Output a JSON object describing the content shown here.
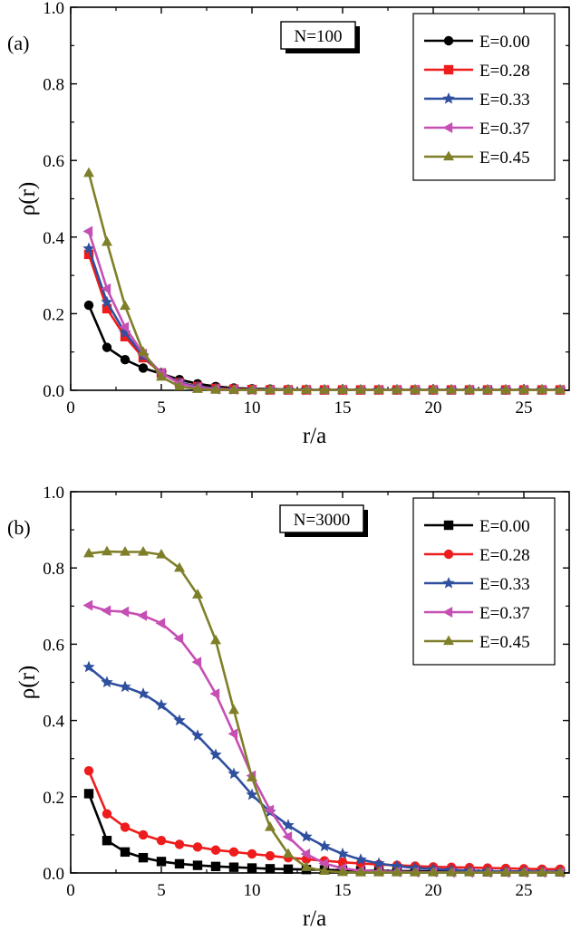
{
  "chart_data": [
    {
      "type": "line",
      "panel_label": "(a)",
      "annotation": "N=100",
      "xlabel": "r/a",
      "ylabel": "ρ(r)",
      "xlim": [
        0,
        27.5
      ],
      "ylim": [
        0,
        1.0
      ],
      "xticks": [
        "0",
        "5",
        "10",
        "15",
        "20",
        "25"
      ],
      "yticks": [
        "0.0",
        "0.2",
        "0.4",
        "0.6",
        "0.8",
        "1.0"
      ],
      "legend_position": "top-right",
      "grid": false,
      "series": [
        {
          "name": "E=0.00",
          "color": "#000000",
          "marker": "circle",
          "x": [
            1,
            2,
            3,
            4,
            5,
            6,
            7,
            8,
            9,
            10,
            11,
            12,
            13,
            14,
            15,
            16,
            17,
            18,
            19,
            20,
            21,
            22,
            23,
            24,
            25,
            26,
            27
          ],
          "y": [
            0.222,
            0.112,
            0.08,
            0.058,
            0.043,
            0.028,
            0.017,
            0.01,
            0.006,
            0.004,
            0.003,
            0.002,
            0.002,
            0.001,
            0.001,
            0.001,
            0.001,
            0.001,
            0.001,
            0.001,
            0.001,
            0.001,
            0.001,
            0.001,
            0.001,
            0.001,
            0.001
          ]
        },
        {
          "name": "E=0.28",
          "color": "#ee1c1c",
          "marker": "square",
          "x": [
            1,
            2,
            3,
            4,
            5,
            6,
            7,
            8,
            9,
            10,
            11,
            12,
            13,
            14,
            15,
            16,
            17,
            18,
            19,
            20,
            21,
            22,
            23,
            24,
            25,
            26,
            27
          ],
          "y": [
            0.355,
            0.213,
            0.14,
            0.085,
            0.045,
            0.02,
            0.01,
            0.005,
            0.003,
            0.002,
            0.001,
            0.001,
            0.001,
            0.001,
            0.001,
            0.001,
            0.001,
            0.001,
            0.001,
            0.001,
            0.001,
            0.001,
            0.001,
            0.001,
            0.001,
            0.001,
            0.001
          ]
        },
        {
          "name": "E=0.33",
          "color": "#2f4f9f",
          "marker": "star",
          "x": [
            1,
            2,
            3,
            4,
            5,
            6,
            7,
            8,
            9,
            10,
            11,
            12,
            13,
            14,
            15,
            16,
            17,
            18,
            19,
            20,
            21,
            22,
            23,
            24,
            25,
            26,
            27
          ],
          "y": [
            0.37,
            0.23,
            0.15,
            0.09,
            0.045,
            0.02,
            0.009,
            0.004,
            0.002,
            0.001,
            0.001,
            0.001,
            0.001,
            0.001,
            0.001,
            0.001,
            0.001,
            0.001,
            0.001,
            0.001,
            0.001,
            0.001,
            0.001,
            0.001,
            0.001,
            0.001,
            0.001
          ]
        },
        {
          "name": "E=0.37",
          "color": "#c64fb4",
          "marker": "triangle-left",
          "x": [
            1,
            2,
            3,
            4,
            5,
            6,
            7,
            8,
            9,
            10,
            11,
            12,
            13,
            14,
            15,
            16,
            17,
            18,
            19,
            20,
            21,
            22,
            23,
            24,
            25,
            26,
            27
          ],
          "y": [
            0.415,
            0.265,
            0.165,
            0.095,
            0.045,
            0.018,
            0.007,
            0.003,
            0.002,
            0.001,
            0.001,
            0.001,
            0.001,
            0.001,
            0.001,
            0.001,
            0.001,
            0.001,
            0.001,
            0.001,
            0.001,
            0.001,
            0.001,
            0.001,
            0.001,
            0.001,
            0.001
          ]
        },
        {
          "name": "E=0.45",
          "color": "#7f7f2a",
          "marker": "triangle-up",
          "x": [
            1,
            2,
            3,
            4,
            5,
            6,
            7,
            8,
            9,
            10,
            11,
            12,
            13,
            14,
            15,
            16,
            17,
            18,
            19,
            20,
            21,
            22,
            23,
            24,
            25,
            26,
            27
          ],
          "y": [
            0.567,
            0.387,
            0.22,
            0.1,
            0.035,
            0.01,
            0.003,
            0.001,
            0.001,
            0.001,
            0.001,
            0.001,
            0.001,
            0.001,
            0.001,
            0.001,
            0.001,
            0.001,
            0.001,
            0.001,
            0.001,
            0.001,
            0.001,
            0.001,
            0.001,
            0.001,
            0.001
          ]
        }
      ]
    },
    {
      "type": "line",
      "panel_label": "(b)",
      "annotation": "N=3000",
      "xlabel": "r/a",
      "ylabel": "ρ(r)",
      "xlim": [
        0,
        27.5
      ],
      "ylim": [
        0,
        1.0
      ],
      "xticks": [
        "0",
        "5",
        "10",
        "15",
        "20",
        "25"
      ],
      "yticks": [
        "0.0",
        "0.2",
        "0.4",
        "0.6",
        "0.8",
        "1.0"
      ],
      "legend_position": "top-right",
      "grid": false,
      "series": [
        {
          "name": "E=0.00",
          "color": "#000000",
          "marker": "square",
          "x": [
            1,
            2,
            3,
            4,
            5,
            6,
            7,
            8,
            9,
            10,
            11,
            12,
            13,
            14,
            15,
            16,
            17,
            18,
            19,
            20,
            21,
            22,
            23,
            24,
            25,
            26,
            27
          ],
          "y": [
            0.208,
            0.085,
            0.055,
            0.04,
            0.03,
            0.024,
            0.02,
            0.017,
            0.015,
            0.013,
            0.011,
            0.01,
            0.009,
            0.008,
            0.007,
            0.006,
            0.006,
            0.005,
            0.005,
            0.004,
            0.004,
            0.004,
            0.003,
            0.003,
            0.003,
            0.003,
            0.003
          ]
        },
        {
          "name": "E=0.28",
          "color": "#ee1c1c",
          "marker": "circle",
          "x": [
            1,
            2,
            3,
            4,
            5,
            6,
            7,
            8,
            9,
            10,
            11,
            12,
            13,
            14,
            15,
            16,
            17,
            18,
            19,
            20,
            21,
            22,
            23,
            24,
            25,
            26,
            27
          ],
          "y": [
            0.268,
            0.155,
            0.12,
            0.1,
            0.085,
            0.075,
            0.068,
            0.06,
            0.055,
            0.05,
            0.045,
            0.04,
            0.036,
            0.032,
            0.028,
            0.025,
            0.022,
            0.02,
            0.018,
            0.016,
            0.015,
            0.014,
            0.013,
            0.012,
            0.011,
            0.01,
            0.01
          ]
        },
        {
          "name": "E=0.33",
          "color": "#2f4f9f",
          "marker": "star",
          "x": [
            1,
            2,
            3,
            4,
            5,
            6,
            7,
            8,
            9,
            10,
            11,
            12,
            13,
            14,
            15,
            16,
            17,
            18,
            19,
            20,
            21,
            22,
            23,
            24,
            25,
            26,
            27
          ],
          "y": [
            0.54,
            0.5,
            0.488,
            0.47,
            0.44,
            0.4,
            0.36,
            0.31,
            0.26,
            0.205,
            0.16,
            0.125,
            0.095,
            0.07,
            0.05,
            0.035,
            0.025,
            0.018,
            0.013,
            0.01,
            0.008,
            0.006,
            0.005,
            0.004,
            0.004,
            0.003,
            0.003
          ]
        },
        {
          "name": "E=0.37",
          "color": "#c64fb4",
          "marker": "triangle-left",
          "x": [
            1,
            2,
            3,
            4,
            5,
            6,
            7,
            8,
            9,
            10,
            11,
            12,
            13,
            14,
            15,
            16,
            17,
            18,
            19,
            20,
            21,
            22,
            23,
            24,
            25,
            26,
            27
          ],
          "y": [
            0.702,
            0.688,
            0.685,
            0.675,
            0.655,
            0.615,
            0.553,
            0.47,
            0.365,
            0.255,
            0.165,
            0.095,
            0.05,
            0.025,
            0.012,
            0.006,
            0.004,
            0.003,
            0.002,
            0.002,
            0.001,
            0.001,
            0.001,
            0.001,
            0.001,
            0.001,
            0.001
          ]
        },
        {
          "name": "E=0.45",
          "color": "#7f7f2a",
          "marker": "triangle-up",
          "x": [
            1,
            2,
            3,
            4,
            5,
            6,
            7,
            8,
            9,
            10,
            11,
            12,
            13,
            14,
            15,
            16,
            17,
            18,
            19,
            20,
            21,
            22,
            23,
            24,
            25,
            26,
            27
          ],
          "y": [
            0.838,
            0.843,
            0.842,
            0.842,
            0.835,
            0.8,
            0.73,
            0.61,
            0.427,
            0.25,
            0.12,
            0.05,
            0.015,
            0.005,
            0.002,
            0.001,
            0.001,
            0.001,
            0.001,
            0.001,
            0.001,
            0.001,
            0.001,
            0.001,
            0.001,
            0.001,
            0.001
          ]
        }
      ]
    }
  ]
}
